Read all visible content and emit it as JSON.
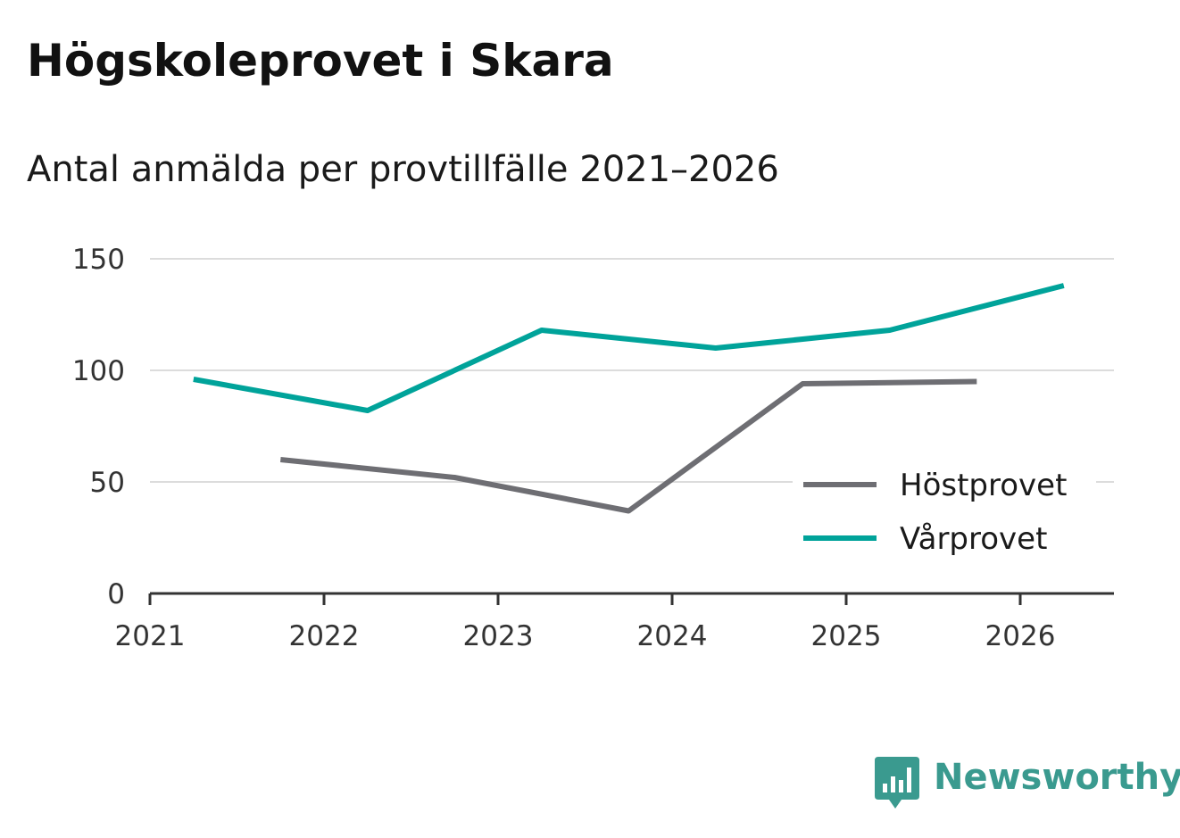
{
  "title": "Högskoleprovet i Skara",
  "subtitle": "Antal anmälda per provtillfälle 2021–2026",
  "brand": {
    "name": "Newsworthy",
    "color": "#3a9a8f",
    "icon": "bar-chart-speech-bubble-icon"
  },
  "chart_data": {
    "type": "line",
    "title": "Högskoleprovet i Skara",
    "subtitle": "Antal anmälda per provtillfälle 2021–2026",
    "xlabel": "",
    "ylabel": "",
    "xlim": [
      2021,
      2026.55
    ],
    "ylim": [
      0,
      150
    ],
    "x_ticks": [
      "2021",
      "2022",
      "2023",
      "2024",
      "2025",
      "2026"
    ],
    "y_ticks": [
      "0",
      "50",
      "100",
      "150"
    ],
    "grid": true,
    "legend_position": "bottom-right",
    "series": [
      {
        "name": "Höstprovet",
        "color": "#6e6e73",
        "points": [
          {
            "x": "2021-10",
            "y": 60
          },
          {
            "x": "2022-10",
            "y": 52
          },
          {
            "x": "2023-10",
            "y": 37
          },
          {
            "x": "2024-10",
            "y": 94
          },
          {
            "x": "2025-10",
            "y": 95
          }
        ]
      },
      {
        "name": "Vårprovet",
        "color": "#00a39a",
        "points": [
          {
            "x": "2021-04",
            "y": 96
          },
          {
            "x": "2022-04",
            "y": 82
          },
          {
            "x": "2023-04",
            "y": 118
          },
          {
            "x": "2024-04",
            "y": 110
          },
          {
            "x": "2025-04",
            "y": 118
          },
          {
            "x": "2026-04",
            "y": 138
          }
        ]
      }
    ]
  }
}
